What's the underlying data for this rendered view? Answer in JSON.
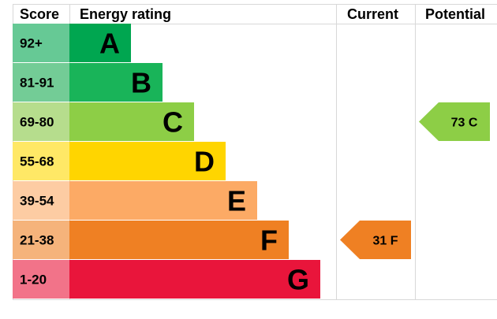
{
  "headers": {
    "score": "Score",
    "energy_rating": "Energy rating",
    "current": "Current",
    "potential": "Potential"
  },
  "chart_data": {
    "type": "bar",
    "bands": [
      {
        "letter": "A",
        "range": "92+",
        "color": "#00a650",
        "score_color": "#66c995"
      },
      {
        "letter": "B",
        "range": "81-91",
        "color": "#19b459",
        "score_color": "#73cc96"
      },
      {
        "letter": "C",
        "range": "69-80",
        "color": "#8dce46",
        "score_color": "#b6dd8d"
      },
      {
        "letter": "D",
        "range": "55-68",
        "color": "#ffd500",
        "score_color": "#ffe866"
      },
      {
        "letter": "E",
        "range": "39-54",
        "color": "#fcaa65",
        "score_color": "#fdcca3"
      },
      {
        "letter": "F",
        "range": "21-38",
        "color": "#ef8023",
        "score_color": "#f5b37b"
      },
      {
        "letter": "G",
        "range": "1-20",
        "color": "#e9153b",
        "score_color": "#f27389"
      }
    ],
    "current": {
      "value": 31,
      "band": "F",
      "label": "31  F"
    },
    "potential": {
      "value": 73,
      "band": "C",
      "label": "73  C"
    }
  }
}
